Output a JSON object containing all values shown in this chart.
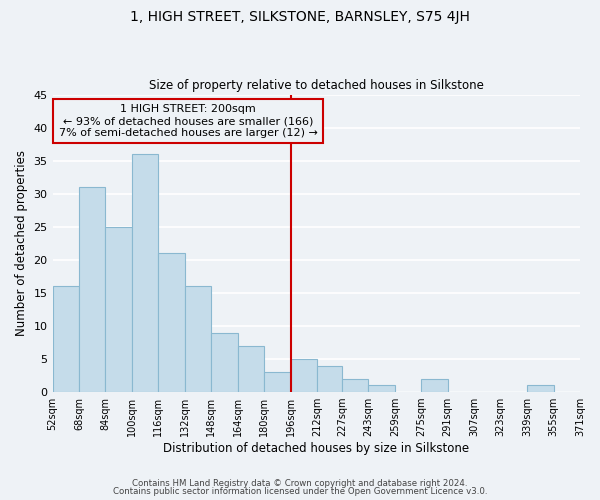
{
  "title": "1, HIGH STREET, SILKSTONE, BARNSLEY, S75 4JH",
  "subtitle": "Size of property relative to detached houses in Silkstone",
  "xlabel": "Distribution of detached houses by size in Silkstone",
  "ylabel": "Number of detached properties",
  "bar_color": "#c5dcea",
  "bar_edge_color": "#8ab8d0",
  "bin_edges": [
    52,
    68,
    84,
    100,
    116,
    132,
    148,
    164,
    180,
    196,
    212,
    227,
    243,
    259,
    275,
    291,
    307,
    323,
    339,
    355,
    371
  ],
  "bin_labels": [
    "52sqm",
    "68sqm",
    "84sqm",
    "100sqm",
    "116sqm",
    "132sqm",
    "148sqm",
    "164sqm",
    "180sqm",
    "196sqm",
    "212sqm",
    "227sqm",
    "243sqm",
    "259sqm",
    "275sqm",
    "291sqm",
    "307sqm",
    "323sqm",
    "339sqm",
    "355sqm",
    "371sqm"
  ],
  "counts": [
    16,
    31,
    25,
    36,
    21,
    16,
    9,
    7,
    3,
    5,
    4,
    2,
    1,
    0,
    2,
    0,
    0,
    0,
    1,
    0
  ],
  "property_label": "1 HIGH STREET: 200sqm",
  "annotation_line1": "← 93% of detached houses are smaller (166)",
  "annotation_line2": "7% of semi-detached houses are larger (12) →",
  "vline_x": 196,
  "vline_color": "#cc0000",
  "annotation_box_edge_color": "#cc0000",
  "ylim": [
    0,
    45
  ],
  "yticks": [
    0,
    5,
    10,
    15,
    20,
    25,
    30,
    35,
    40,
    45
  ],
  "footer_line1": "Contains HM Land Registry data © Crown copyright and database right 2024.",
  "footer_line2": "Contains public sector information licensed under the Open Government Licence v3.0.",
  "background_color": "#eef2f6",
  "grid_color": "#ffffff"
}
